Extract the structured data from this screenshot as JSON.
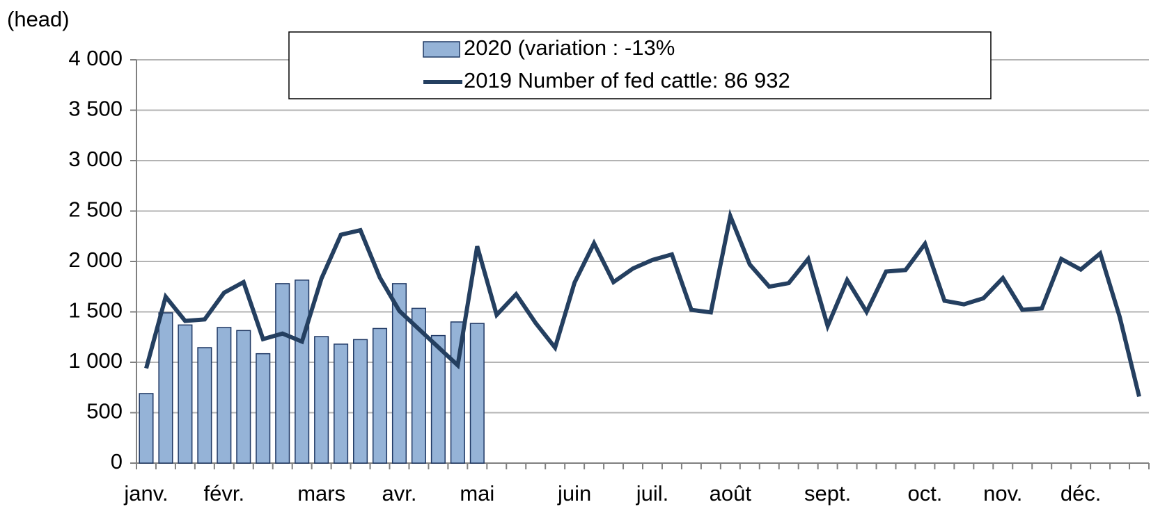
{
  "chart_data": {
    "type": "bar_line",
    "y_label": "(head)",
    "categories": [
      "janv.",
      null,
      null,
      null,
      "févr.",
      null,
      null,
      null,
      null,
      "mars",
      null,
      null,
      null,
      "avr.",
      null,
      null,
      null,
      "mai",
      null,
      null,
      null,
      null,
      "juin",
      null,
      null,
      null,
      "juil.",
      null,
      null,
      null,
      "août",
      null,
      null,
      null,
      null,
      "sept.",
      null,
      null,
      null,
      null,
      "oct.",
      null,
      null,
      null,
      "nov.",
      null,
      null,
      null,
      "déc.",
      null,
      null,
      null
    ],
    "series": [
      {
        "name": "2020 (variation : -13%",
        "type": "bar",
        "color": "#95b3d7",
        "edge_color": "#1f3864",
        "values": [
          690,
          1490,
          1370,
          1145,
          1345,
          1315,
          1085,
          1780,
          1815,
          1255,
          1180,
          1225,
          1335,
          1780,
          1535,
          1265,
          1400,
          1385,
          null,
          null,
          null,
          null,
          null,
          null,
          null,
          null,
          null,
          null,
          null,
          null,
          null,
          null,
          null,
          null,
          null,
          null,
          null,
          null,
          null,
          null,
          null,
          null,
          null,
          null,
          null,
          null,
          null,
          null,
          null,
          null,
          null,
          null
        ]
      },
      {
        "name": "2019 Number of fed cattle: 86 932",
        "type": "line",
        "color": "#243f60",
        "values": [
          940,
          1650,
          1410,
          1425,
          1690,
          1795,
          1230,
          1285,
          1205,
          1830,
          2265,
          2310,
          1840,
          1510,
          1330,
          1150,
          970,
          2150,
          1470,
          1675,
          1390,
          1145,
          1790,
          2180,
          1795,
          1930,
          2015,
          2070,
          1520,
          1495,
          2450,
          1970,
          1750,
          1785,
          2025,
          1360,
          1815,
          1500,
          1900,
          1915,
          2175,
          1610,
          1575,
          1635,
          1835,
          1520,
          1535,
          2025,
          1920,
          2080,
          1450,
          660
        ]
      }
    ],
    "ylim": [
      0,
      4000
    ],
    "yticks": [
      0,
      500,
      {
        "value": 1000,
        "label": "1 000"
      },
      {
        "value": 1500,
        "label": "1 500"
      },
      {
        "value": 2000,
        "label": "2 000"
      },
      {
        "value": 2500,
        "label": "2 500"
      },
      {
        "value": 3000,
        "label": "3 000"
      },
      {
        "value": 3500,
        "label": "3 500"
      },
      {
        "value": 4000,
        "label": "4 000"
      }
    ],
    "grid": true,
    "legend": "top"
  }
}
